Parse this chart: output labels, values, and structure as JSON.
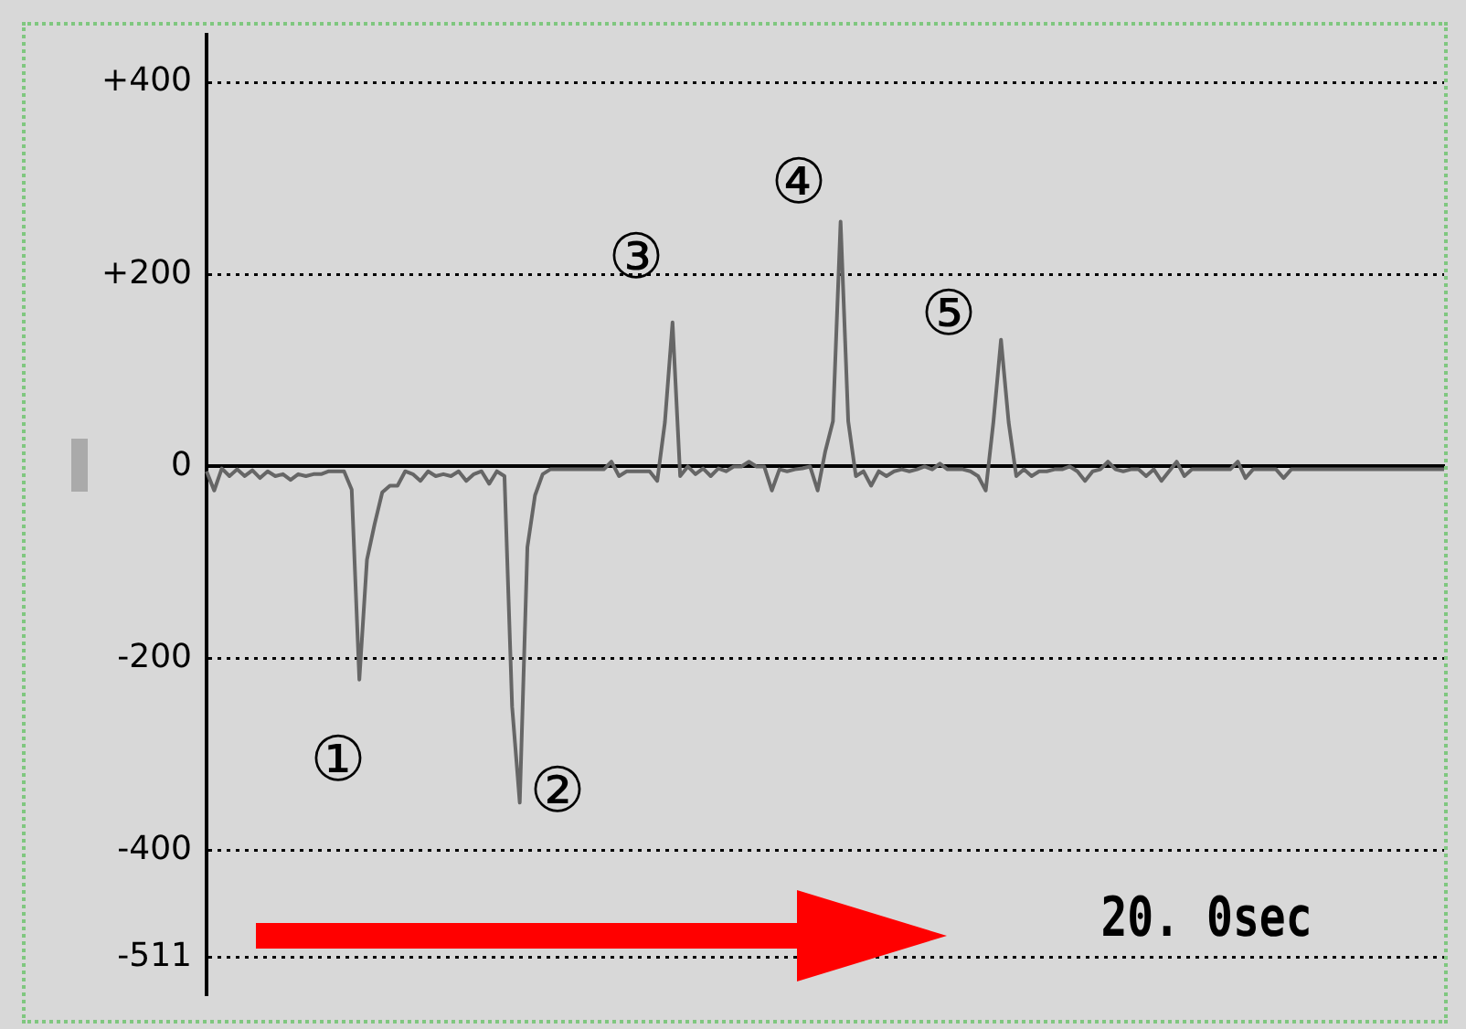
{
  "chart_data": {
    "type": "line",
    "color": "#666666",
    "categories": [
      null,
      null,
      null,
      null,
      null,
      null,
      null,
      null,
      null,
      null,
      null,
      null,
      null,
      null,
      null,
      null,
      null,
      null,
      null,
      null,
      null,
      null,
      null,
      null,
      null,
      null,
      null,
      null,
      null,
      null,
      null,
      null,
      null,
      null,
      null,
      null,
      null,
      null,
      null,
      null,
      null,
      null,
      null,
      null,
      null,
      null,
      null,
      null,
      null,
      null,
      null,
      null,
      null,
      null,
      null,
      null,
      null,
      null,
      null,
      null,
      null,
      null,
      null,
      null,
      null,
      null,
      null,
      null,
      null,
      null,
      null,
      null,
      null,
      null,
      null,
      null,
      null,
      null,
      null,
      null,
      null,
      null,
      null,
      null,
      null,
      null,
      null,
      null,
      null,
      null,
      null,
      null,
      null,
      null,
      null,
      null,
      null,
      null,
      null,
      null,
      null,
      null,
      null,
      null,
      null,
      null,
      null,
      null,
      null,
      null,
      null,
      null,
      null,
      null,
      null,
      null,
      null,
      null,
      null,
      null,
      null,
      null,
      null,
      null,
      null,
      null,
      null,
      null,
      null,
      null,
      null,
      null,
      null,
      null,
      null,
      null,
      null,
      null,
      null,
      null,
      null,
      null,
      null,
      null,
      null,
      null,
      null,
      null,
      null,
      null,
      null,
      null,
      null,
      null,
      null,
      null,
      null,
      null,
      null,
      null,
      null,
      null,
      null
    ],
    "values": [
      -5,
      -25,
      -2,
      -10,
      -3,
      -10,
      -4,
      -12,
      -5,
      -10,
      -8,
      -14,
      -8,
      -10,
      -8,
      -8,
      -5,
      -5,
      -5,
      -24,
      -222,
      -97,
      -60,
      -27,
      -20,
      -20,
      -5,
      -8,
      -15,
      -5,
      -10,
      -8,
      -10,
      -5,
      -15,
      -8,
      -5,
      -18,
      -5,
      -10,
      -250,
      -350,
      -84,
      -30,
      -8,
      -3,
      -3,
      -3,
      -3,
      -3,
      -3,
      -3,
      -3,
      5,
      -10,
      -5,
      -5,
      -5,
      -5,
      -15,
      46,
      150,
      -10,
      0,
      -8,
      -2,
      -10,
      -2,
      -5,
      0,
      0,
      5,
      0,
      0,
      -25,
      -3,
      -5,
      -3,
      -2,
      0,
      -25,
      16,
      47,
      255,
      47,
      -10,
      -5,
      -20,
      -5,
      -10,
      -5,
      -3,
      -5,
      -3,
      0,
      -3,
      3,
      -3,
      -3,
      -3,
      -5,
      -10,
      -25,
      46,
      132,
      46,
      -10,
      -3,
      -10,
      -5,
      -5,
      -3,
      -3,
      0,
      -5,
      -15,
      -5,
      -3,
      5,
      -3,
      -5,
      -3,
      -3,
      -10,
      -3,
      -15,
      -5,
      5,
      -10,
      -3,
      -3,
      -3,
      -3,
      -3,
      -3,
      5,
      -12,
      -3,
      -3,
      -3,
      -3,
      -12,
      -3,
      -3,
      -3,
      -3,
      -3,
      -3,
      -3,
      -3,
      -3,
      -3,
      -3,
      -3,
      -3,
      -3,
      -3,
      -3,
      -3,
      -3,
      -3,
      -3,
      -3
    ],
    "ylim": [
      -550,
      450
    ],
    "yticks": [
      {
        "value": 400,
        "label": "+400"
      },
      {
        "value": 200,
        "label": "+200"
      },
      0,
      -200,
      -400,
      -511
    ],
    "grid": "y",
    "marker": "none",
    "line_style": "solid",
    "legend": false,
    "tick_labels": "y",
    "annotations": [
      "①",
      "②",
      "③",
      "④",
      "⑤",
      "20. 0sec"
    ]
  }
}
